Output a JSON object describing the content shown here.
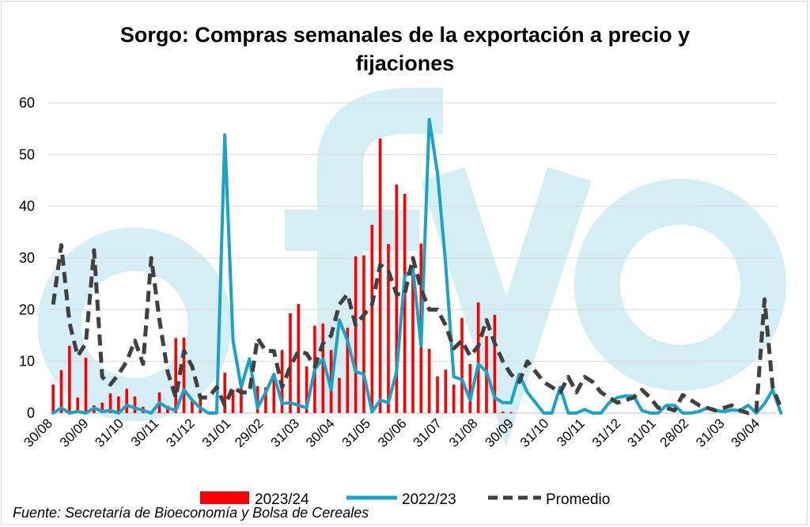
{
  "chart_data": {
    "type": "bar+line",
    "title_lines": [
      "Sorgo: Compras semanales de la exportación a precio y",
      "fijaciones"
    ],
    "xlabel": "",
    "ylabel": "",
    "ylim": [
      0,
      60
    ],
    "yticks": [
      0,
      10,
      20,
      30,
      40,
      50,
      60
    ],
    "grid": true,
    "x_tick_labels": [
      "30/08",
      "30/09",
      "31/10",
      "30/11",
      "31/12",
      "31/01",
      "29/02",
      "31/03",
      "30/04",
      "31/05",
      "30/06",
      "31/07",
      "31/08",
      "30/09",
      "31/10",
      "30/11",
      "31/12",
      "31/01",
      "28/02",
      "31/03",
      "30/04"
    ],
    "x_tick_weeks": [
      0,
      4.4,
      8.7,
      13,
      17.4,
      21.8,
      25.8,
      30.2,
      34.5,
      38.9,
      43.3,
      47.6,
      52,
      56.4,
      60.7,
      65.1,
      69.5,
      73.8,
      77.8,
      82.2,
      86.5
    ],
    "n_weeks": 89,
    "series": [
      {
        "name": "2023/24",
        "kind": "bar",
        "color": "#ff0000",
        "values": [
          5.5,
          8.3,
          13,
          3,
          10.7,
          1.5,
          2,
          3.8,
          3.2,
          4.7,
          3.2,
          1.2,
          0,
          4,
          1.4,
          14.5,
          14.6,
          2.3,
          3.5,
          0,
          0,
          7.8,
          4.5,
          5,
          0,
          5.2,
          5,
          6.6,
          12.2,
          19.3,
          21.1,
          9,
          16.9,
          17.3,
          12.2,
          6.8,
          16.5,
          30.3,
          30.5,
          36.4,
          53.1,
          32.7,
          44.2,
          42.4,
          28.3,
          32.8,
          12.4,
          7.1,
          8.4,
          5.5,
          18.4,
          9.5,
          21.4,
          14.9,
          19,
          0.3,
          0.2
        ]
      },
      {
        "name": "2022/23",
        "kind": "line",
        "color": "#19a3c6",
        "values": [
          0,
          1,
          0,
          0.3,
          0,
          1,
          0.3,
          0.5,
          0,
          1.5,
          1,
          0.5,
          0,
          2,
          1,
          0.5,
          4.5,
          2.5,
          1,
          0,
          0,
          53.8,
          14,
          5,
          10.5,
          1,
          4,
          7.5,
          1.8,
          2,
          1.5,
          1,
          8.5,
          10.5,
          4.5,
          18,
          14,
          8,
          7.5,
          0.2,
          2.5,
          2,
          8,
          26.5,
          28,
          13,
          56.8,
          46.5,
          29,
          7,
          6.5,
          2.5,
          9.5,
          8,
          3,
          2,
          2,
          7.5,
          4,
          2,
          0,
          0,
          5,
          0,
          0,
          0.7,
          0,
          0,
          2,
          3,
          3.3,
          3.3,
          0.5,
          0,
          0,
          1.5,
          1.5,
          0,
          0,
          0.3,
          1,
          0.5,
          0.3,
          0.6,
          0.5,
          1.5,
          0,
          1.8,
          4.5,
          0
        ]
      },
      {
        "name": "Promedio",
        "kind": "line",
        "dashed": true,
        "color": "#404040",
        "values": [
          21,
          32.5,
          17.5,
          11,
          13.5,
          31.5,
          7,
          5.5,
          7.5,
          10,
          14,
          9.5,
          30,
          18,
          8,
          3,
          12,
          9,
          3,
          3,
          5,
          1.5,
          5,
          4,
          4,
          14.5,
          12,
          12,
          5,
          9,
          12,
          11.5,
          9,
          13.5,
          15,
          21,
          23,
          17,
          19,
          21,
          28.7,
          27.5,
          23,
          23,
          30,
          24,
          20,
          20,
          17,
          12.5,
          14,
          11,
          13,
          18,
          13.5,
          10,
          7.5,
          6,
          10,
          8,
          6,
          5,
          4,
          7,
          4,
          7,
          6,
          4,
          3,
          2,
          2.5,
          3,
          4.5,
          3,
          1,
          1,
          0.5,
          3.5,
          2.5,
          1.5,
          1,
          0.5,
          1,
          1.5,
          0.5,
          0,
          0.5,
          22,
          5,
          1
        ]
      }
    ],
    "legend_position": "bottom",
    "watermark": "afyo"
  },
  "source_text": "Fuente: Secretaría de Bioeconomía y Bolsa de Cereales"
}
